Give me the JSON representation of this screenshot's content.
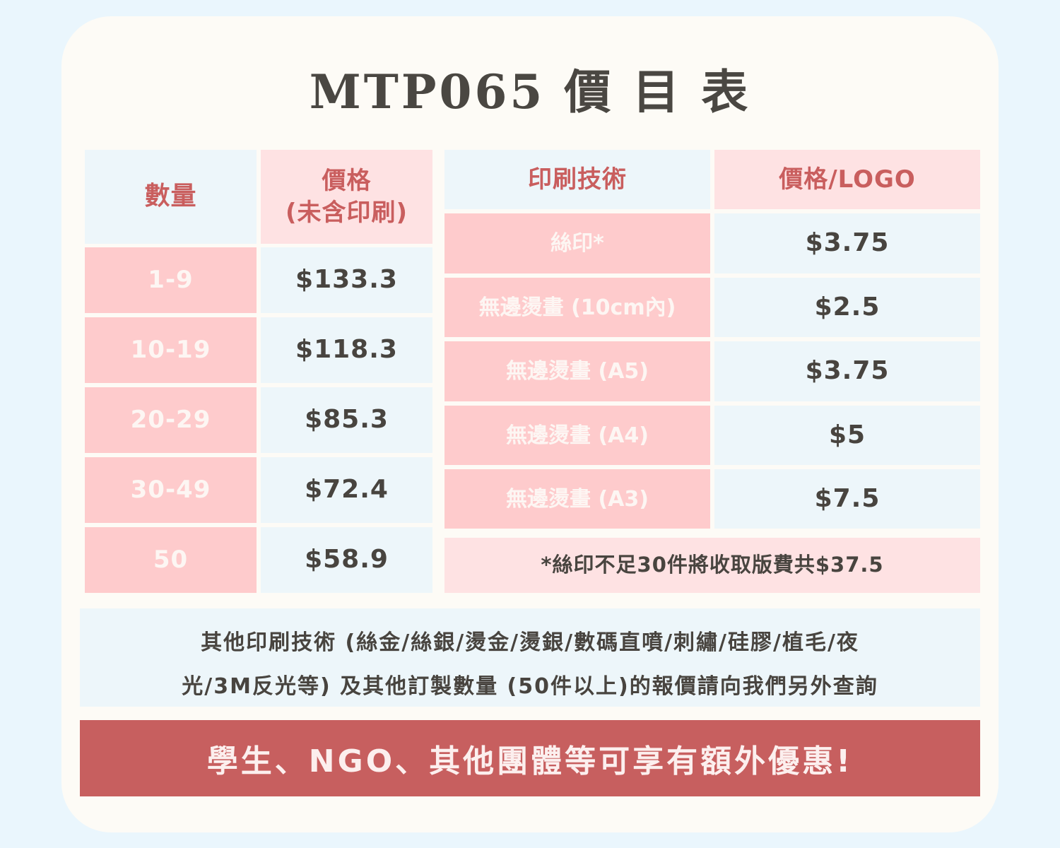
{
  "title": "MTP065  價 目 表",
  "qty_table": {
    "header_qty": "數量",
    "header_price_line1": "價格",
    "header_price_line2": "(未含印刷)",
    "rows": [
      {
        "qty": "1-9",
        "price": "$133.3"
      },
      {
        "qty": "10-19",
        "price": "$118.3"
      },
      {
        "qty": "20-29",
        "price": "$85.3"
      },
      {
        "qty": "30-49",
        "price": "$72.4"
      },
      {
        "qty": "50",
        "price": "$58.9"
      }
    ]
  },
  "print_table": {
    "header_tech": "印刷技術",
    "header_price": "價格/LOGO",
    "rows": [
      {
        "tech": "絲印*",
        "price": "$3.75"
      },
      {
        "tech": "無邊燙畫 (10cm內)",
        "price": "$2.5"
      },
      {
        "tech": "無邊燙畫 (A5)",
        "price": "$3.75"
      },
      {
        "tech": "無邊燙畫 (A4)",
        "price": "$5"
      },
      {
        "tech": "無邊燙畫 (A3)",
        "price": "$7.5"
      }
    ],
    "note": "*絲印不足30件將收取版費共$37.5"
  },
  "info": {
    "line1": "其他印刷技術 (絲金/絲銀/燙金/燙銀/數碼直噴/刺繡/硅膠/植毛/夜",
    "line2": "光/3M反光等) 及其他訂製數量 (50件以上)的報價請向我們另外查詢"
  },
  "banner": "學生、NGO、其他團體等可享有額外優惠!",
  "colors": {
    "background": "#eaf6fd",
    "card": "#fdfbf6",
    "pink": "#fecbcc",
    "light_pink": "#fee2e3",
    "light_blue": "#edf6fa",
    "accent_red": "#c75f5f",
    "text_dark": "#48443f"
  }
}
